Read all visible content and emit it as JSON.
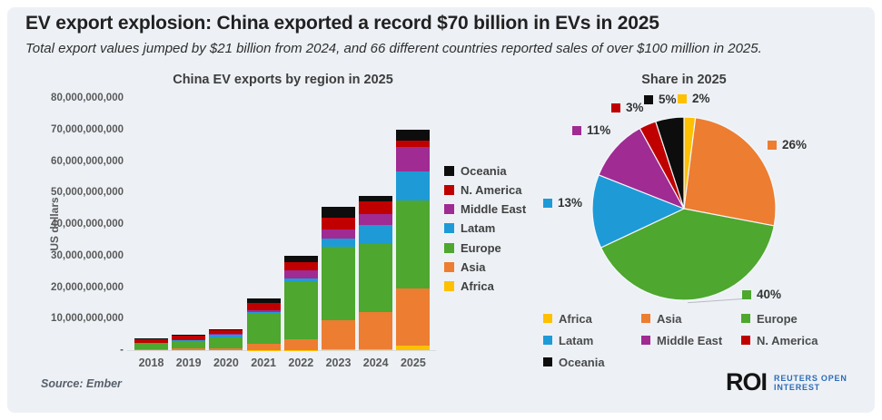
{
  "page": {
    "background": "#ffffff",
    "card_background": "#edf1f6"
  },
  "header": {
    "title": "EV export explosion: China exported a record $70 billion in EVs in 2025",
    "subtitle": "Total export values jumped by $21 billion from 2024, and 66 different countries reported sales of over $100 million in 2025."
  },
  "source": {
    "label": "Source: Ember"
  },
  "logo": {
    "mark": "ROI",
    "line1": "REUTERS OPEN",
    "line2": "INTEREST"
  },
  "colors": {
    "Africa": "#ffc000",
    "Asia": "#ed7d31",
    "Europe": "#4ea72e",
    "Latam": "#1e9bd7",
    "Middle East": "#a02b93",
    "N. America": "#c00000",
    "Oceania": "#0d0d0d"
  },
  "chart_data": [
    {
      "type": "bar",
      "stacked": true,
      "title": "China EV exports by region in 2025",
      "ylabel": "US dollars",
      "unit": "billions of US dollars",
      "categories": [
        "2018",
        "2019",
        "2020",
        "2021",
        "2022",
        "2023",
        "2024",
        "2025"
      ],
      "series": [
        {
          "name": "Africa",
          "color": "#ffc000",
          "values": [
            0,
            0,
            0,
            0.1,
            0.1,
            0.2,
            0.4,
            1.4
          ]
        },
        {
          "name": "Asia",
          "color": "#ed7d31",
          "values": [
            0.4,
            0.6,
            0.6,
            2.0,
            3.4,
            9.2,
            11.6,
            18.2
          ]
        },
        {
          "name": "Europe",
          "color": "#4ea72e",
          "values": [
            1.8,
            2.0,
            3.5,
            9.5,
            18.5,
            23.5,
            21.6,
            28.0
          ]
        },
        {
          "name": "Latam",
          "color": "#1e9bd7",
          "values": [
            0.1,
            0.6,
            0.8,
            0.5,
            0.8,
            2.4,
            6.0,
            9.1
          ]
        },
        {
          "name": "Middle East",
          "color": "#a02b93",
          "values": [
            0.1,
            0.1,
            0.2,
            0.7,
            2.4,
            2.9,
            3.7,
            7.7
          ]
        },
        {
          "name": "N. America",
          "color": "#c00000",
          "values": [
            1.1,
            1.2,
            1.2,
            2.3,
            2.6,
            3.8,
            3.9,
            2.1
          ]
        },
        {
          "name": "Oceania",
          "color": "#0d0d0d",
          "values": [
            0.4,
            0.3,
            0.4,
            1.2,
            2.1,
            3.4,
            1.8,
            3.5
          ]
        }
      ],
      "ylim": [
        0,
        80
      ],
      "yticks": [
        {
          "value": 80,
          "label": "80,000,000,000"
        },
        {
          "value": 70,
          "label": "70,000,000,000"
        },
        {
          "value": 60,
          "label": "60,000,000,000"
        },
        {
          "value": 50,
          "label": "50,000,000,000"
        },
        {
          "value": 40,
          "label": "40,000,000,000"
        },
        {
          "value": 30,
          "label": "30,000,000,000"
        },
        {
          "value": 20,
          "label": "20,000,000,000"
        },
        {
          "value": 10,
          "label": "10,000,000,000"
        },
        {
          "value": 0,
          "label": "-"
        }
      ],
      "legend_order_top_to_bottom": [
        "Oceania",
        "N. America",
        "Middle East",
        "Latam",
        "Europe",
        "Asia",
        "Africa"
      ],
      "legend_position": "right",
      "grid": false
    },
    {
      "type": "pie",
      "title": "Share in 2025",
      "start_angle": "12 o'clock",
      "direction": "clockwise",
      "slices": [
        {
          "name": "Africa",
          "pct": 2,
          "label": "2%",
          "color": "#ffc000"
        },
        {
          "name": "Asia",
          "pct": 26,
          "label": "26%",
          "color": "#ed7d31"
        },
        {
          "name": "Europe",
          "pct": 40,
          "label": "40%",
          "color": "#4ea72e"
        },
        {
          "name": "Latam",
          "pct": 13,
          "label": "13%",
          "color": "#1e9bd7"
        },
        {
          "name": "Middle East",
          "pct": 11,
          "label": "11%",
          "color": "#a02b93"
        },
        {
          "name": "N. America",
          "pct": 3,
          "label": "3%",
          "color": "#c00000"
        },
        {
          "name": "Oceania",
          "pct": 5,
          "label": "5%",
          "color": "#0d0d0d"
        }
      ],
      "legend_rows": [
        [
          "Africa",
          "Asia",
          "Europe"
        ],
        [
          "Latam",
          "Middle East",
          "N. America"
        ],
        [
          "Oceania"
        ]
      ],
      "legend_position": "bottom"
    }
  ]
}
